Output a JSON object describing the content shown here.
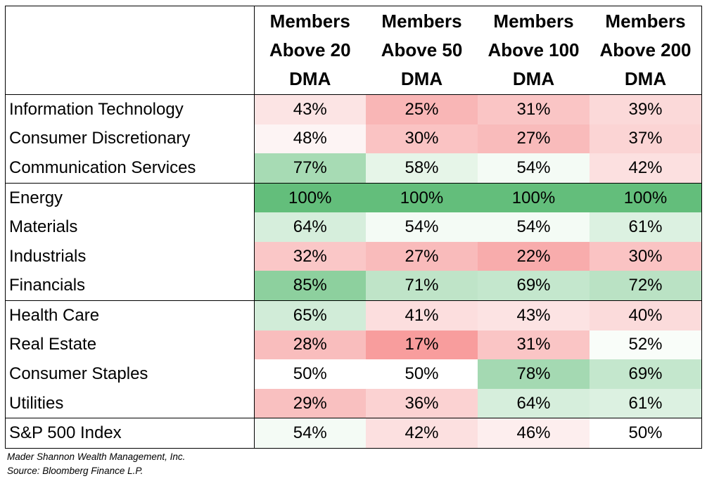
{
  "headers": [
    [
      "Members",
      "Above 20",
      "DMA"
    ],
    [
      "Members",
      "Above 50",
      "DMA"
    ],
    [
      "Members",
      "Above 100",
      "DMA"
    ],
    [
      "Members",
      "Above 200",
      "DMA"
    ]
  ],
  "rows": [
    {
      "label": "Information Technology",
      "values": [
        "43%",
        "25%",
        "31%",
        "39%"
      ],
      "colors": [
        "#fce4e4",
        "#f9b6b6",
        "#fac5c5",
        "#fbd9d9"
      ],
      "group_end": false
    },
    {
      "label": "Consumer Discretionary",
      "values": [
        "48%",
        "30%",
        "27%",
        "37%"
      ],
      "colors": [
        "#fdf4f4",
        "#fac3c3",
        "#f9bbbb",
        "#fbd4d4"
      ],
      "group_end": false
    },
    {
      "label": "Communication Services",
      "values": [
        "77%",
        "58%",
        "54%",
        "42%"
      ],
      "colors": [
        "#a7dbb4",
        "#e6f5e8",
        "#f4fbf5",
        "#fce0e0"
      ],
      "group_end": true
    },
    {
      "label": "Energy",
      "values": [
        "100%",
        "100%",
        "100%",
        "100%"
      ],
      "colors": [
        "#63be7b",
        "#63be7b",
        "#63be7b",
        "#63be7b"
      ],
      "group_end": false
    },
    {
      "label": "Materials",
      "values": [
        "64%",
        "54%",
        "54%",
        "61%"
      ],
      "colors": [
        "#d6eedc",
        "#f4fbf5",
        "#f4fbf5",
        "#dcf1e1"
      ],
      "group_end": false
    },
    {
      "label": "Industrials",
      "values": [
        "32%",
        "27%",
        "22%",
        "30%"
      ],
      "colors": [
        "#fac7c7",
        "#f9bbbb",
        "#f8acac",
        "#fac3c3"
      ],
      "group_end": false
    },
    {
      "label": "Financials",
      "values": [
        "85%",
        "71%",
        "69%",
        "72%"
      ],
      "colors": [
        "#8dd09e",
        "#bfe4c8",
        "#c4e7cd",
        "#bae2c4"
      ],
      "group_end": true
    },
    {
      "label": "Health Care",
      "values": [
        "65%",
        "41%",
        "43%",
        "40%"
      ],
      "colors": [
        "#d1ecd8",
        "#fcdede",
        "#fce3e3",
        "#fbdbdb"
      ],
      "group_end": false
    },
    {
      "label": "Real Estate",
      "values": [
        "28%",
        "17%",
        "31%",
        "52%"
      ],
      "colors": [
        "#f9bdbd",
        "#f89d9d",
        "#fac5c5",
        "#f9fdf9"
      ],
      "group_end": false
    },
    {
      "label": "Consumer Staples",
      "values": [
        "50%",
        "50%",
        "78%",
        "69%"
      ],
      "colors": [
        "#ffffff",
        "#ffffff",
        "#a4d9b2",
        "#c4e7cd"
      ],
      "group_end": false
    },
    {
      "label": "Utilities",
      "values": [
        "29%",
        "36%",
        "64%",
        "61%"
      ],
      "colors": [
        "#f9c0c0",
        "#fbd2d2",
        "#d6eedc",
        "#dcf1e1"
      ],
      "group_end": true
    },
    {
      "label": "S&P 500 Index",
      "values": [
        "54%",
        "42%",
        "46%",
        "50%"
      ],
      "colors": [
        "#f4fbf5",
        "#fce0e0",
        "#fdeeee",
        "#ffffff"
      ],
      "group_end": false
    }
  ],
  "footer": {
    "line1": "Mader Shannon Wealth Management, Inc.",
    "line2": "Source: Bloomberg Finance L.P."
  }
}
